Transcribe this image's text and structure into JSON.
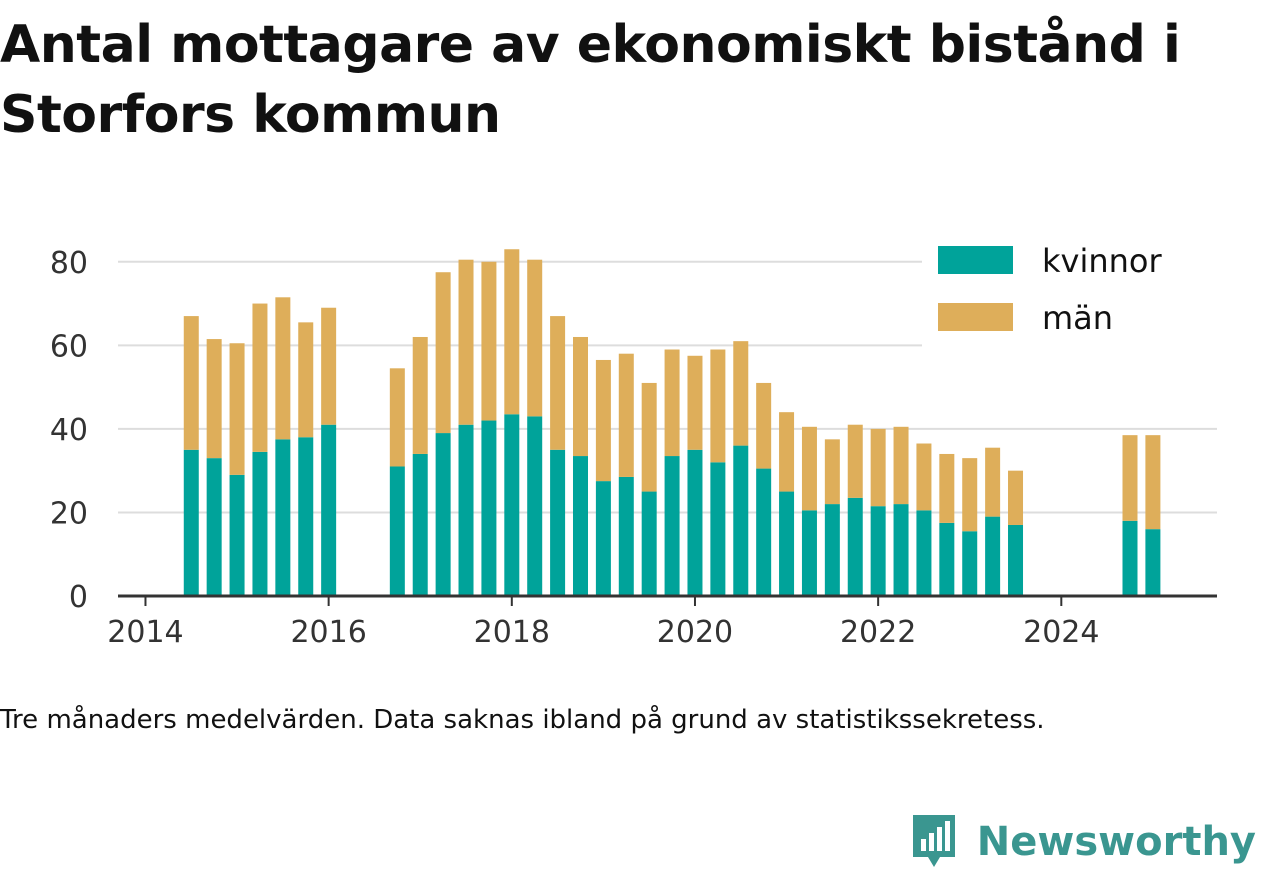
{
  "title": "Antal mottagare av ekonomiskt bistånd i Storfors kommun",
  "footnote": "Tre månaders medelvärden. Data saknas ibland på grund av statistikssekretess.",
  "brand": {
    "name": "Newsworthy"
  },
  "colors": {
    "kvinnor": "#00a39a",
    "man": "#deae5a",
    "grid": "#dddddd",
    "axis": "#333333",
    "brand": "#3a9690"
  },
  "chart_data": {
    "type": "bar",
    "stacked": true,
    "x_label": "",
    "y_label": "",
    "x_range": [
      2013.7,
      2025.7
    ],
    "y_range": [
      0,
      90
    ],
    "x_ticks": [
      2014,
      2016,
      2018,
      2020,
      2022,
      2024
    ],
    "y_ticks": [
      0,
      20,
      40,
      60,
      80
    ],
    "grid": "horizontal",
    "legend_position": "top-right",
    "x": [
      2014.5,
      2014.75,
      2015.0,
      2015.25,
      2015.5,
      2015.75,
      2016.0,
      2016.75,
      2017.0,
      2017.25,
      2017.5,
      2017.75,
      2018.0,
      2018.25,
      2018.5,
      2018.75,
      2019.0,
      2019.25,
      2019.5,
      2019.75,
      2020.0,
      2020.25,
      2020.5,
      2020.75,
      2021.0,
      2021.25,
      2021.5,
      2021.75,
      2022.0,
      2022.25,
      2022.5,
      2022.75,
      2023.0,
      2023.25,
      2023.5,
      2024.75,
      2025.0
    ],
    "series": [
      {
        "name": "kvinnor",
        "values": [
          35,
          33,
          29,
          34.5,
          37.5,
          38,
          41,
          31,
          34,
          39,
          41,
          42,
          43.5,
          43,
          35,
          33.5,
          27.5,
          28.5,
          25,
          33.5,
          35,
          32,
          36,
          30.5,
          25,
          20.5,
          22,
          23.5,
          21.5,
          22,
          20.5,
          17.5,
          15.5,
          19,
          17,
          18,
          16
        ]
      },
      {
        "name": "män",
        "values": [
          32,
          28.5,
          31.5,
          35.5,
          34,
          27.5,
          28,
          23.5,
          28,
          38.5,
          39.5,
          38,
          39.5,
          37.5,
          32,
          28.5,
          29,
          29.5,
          26,
          25.5,
          22.5,
          27,
          25,
          20.5,
          19,
          20,
          15.5,
          17.5,
          18.5,
          18.5,
          16,
          16.5,
          17.5,
          16.5,
          13,
          20.5,
          22.5
        ]
      }
    ]
  }
}
